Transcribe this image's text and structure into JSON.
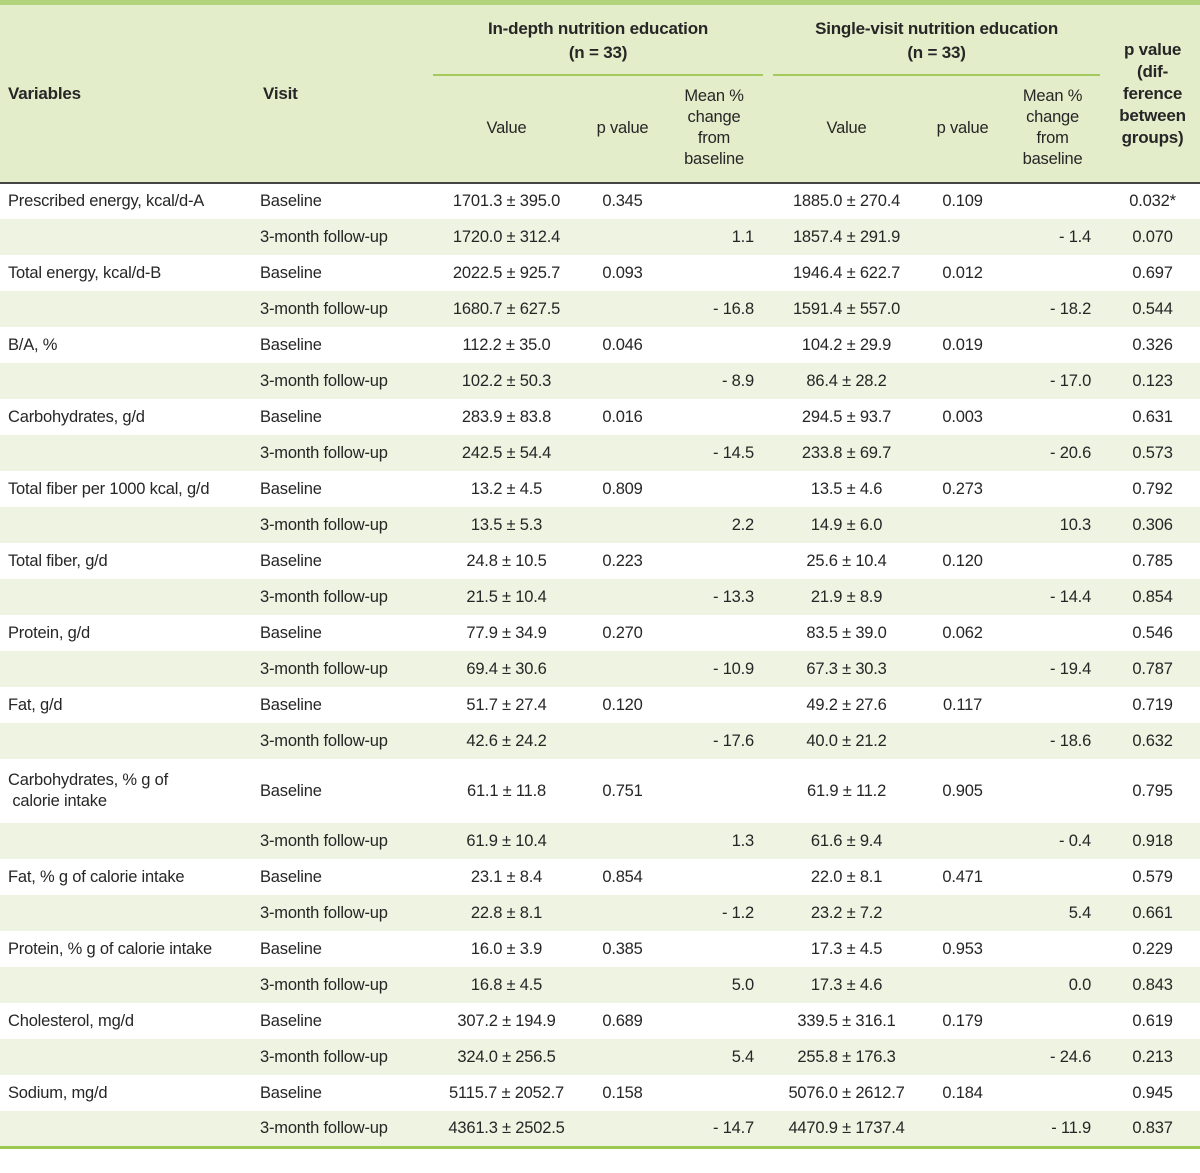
{
  "colors": {
    "header_bg": "#e3edc9",
    "row_alt_bg": "#eef3e2",
    "top_border": "#b2d37c",
    "bottom_border": "#9ac850",
    "group_rule": "#a4c95c",
    "header_rule": "#454545",
    "text": "#262626"
  },
  "table": {
    "headers": {
      "variables": "Variables",
      "visit": "Visit",
      "group1": "In-depth nutrition education\n(n = 33)",
      "group2": "Single-visit nutrition education\n(n = 33)",
      "value": "Value",
      "p_value": "p value",
      "mean_change": "Mean %\nchange\nfrom\nbaseline",
      "p_diff": "p value\n(dif-\nference\nbetween\ngroups)"
    },
    "rows": [
      {
        "variable": "Prescribed energy, kcal/d-A",
        "visit": "Baseline",
        "g1_value": "1701.3 ± 395.0",
        "g1_p": "0.345",
        "g1_mean": "",
        "g2_value": "1885.0 ± 270.4",
        "g2_p": "0.109",
        "g2_mean": "",
        "p_diff": "0.032*"
      },
      {
        "variable": "",
        "visit": "3-month follow-up",
        "g1_value": "1720.0 ± 312.4",
        "g1_p": "",
        "g1_mean": "1.1",
        "g2_value": "1857.4 ± 291.9",
        "g2_p": "",
        "g2_mean": "- 1.4",
        "p_diff": "0.070"
      },
      {
        "variable": "Total energy, kcal/d-B",
        "visit": "Baseline",
        "g1_value": "2022.5 ± 925.7",
        "g1_p": "0.093",
        "g1_mean": "",
        "g2_value": "1946.4 ± 622.7",
        "g2_p": "0.012",
        "g2_mean": "",
        "p_diff": "0.697"
      },
      {
        "variable": "",
        "visit": "3-month follow-up",
        "g1_value": "1680.7 ± 627.5",
        "g1_p": "",
        "g1_mean": "- 16.8",
        "g2_value": "1591.4 ± 557.0",
        "g2_p": "",
        "g2_mean": "- 18.2",
        "p_diff": "0.544"
      },
      {
        "variable": "B/A, %",
        "visit": "Baseline",
        "g1_value": "112.2 ± 35.0",
        "g1_p": "0.046",
        "g1_mean": "",
        "g2_value": "104.2 ± 29.9",
        "g2_p": "0.019",
        "g2_mean": "",
        "p_diff": "0.326"
      },
      {
        "variable": "",
        "visit": "3-month follow-up",
        "g1_value": "102.2 ± 50.3",
        "g1_p": "",
        "g1_mean": "- 8.9",
        "g2_value": "86.4 ± 28.2",
        "g2_p": "",
        "g2_mean": "- 17.0",
        "p_diff": "0.123"
      },
      {
        "variable": "Carbohydrates, g/d",
        "visit": "Baseline",
        "g1_value": "283.9 ± 83.8",
        "g1_p": "0.016",
        "g1_mean": "",
        "g2_value": "294.5 ± 93.7",
        "g2_p": "0.003",
        "g2_mean": "",
        "p_diff": "0.631"
      },
      {
        "variable": "",
        "visit": "3-month follow-up",
        "g1_value": "242.5 ± 54.4",
        "g1_p": "",
        "g1_mean": "- 14.5",
        "g2_value": "233.8 ± 69.7",
        "g2_p": "",
        "g2_mean": "- 20.6",
        "p_diff": "0.573"
      },
      {
        "variable": "Total fiber per 1000 kcal, g/d",
        "visit": "Baseline",
        "g1_value": "13.2 ± 4.5",
        "g1_p": "0.809",
        "g1_mean": "",
        "g2_value": "13.5 ± 4.6",
        "g2_p": "0.273",
        "g2_mean": "",
        "p_diff": "0.792"
      },
      {
        "variable": "",
        "visit": "3-month follow-up",
        "g1_value": "13.5 ± 5.3",
        "g1_p": "",
        "g1_mean": "2.2",
        "g2_value": "14.9 ± 6.0",
        "g2_p": "",
        "g2_mean": "10.3",
        "p_diff": "0.306"
      },
      {
        "variable": "Total fiber, g/d",
        "visit": "Baseline",
        "g1_value": "24.8 ± 10.5",
        "g1_p": "0.223",
        "g1_mean": "",
        "g2_value": "25.6 ± 10.4",
        "g2_p": "0.120",
        "g2_mean": "",
        "p_diff": "0.785"
      },
      {
        "variable": "",
        "visit": "3-month follow-up",
        "g1_value": "21.5 ± 10.4",
        "g1_p": "",
        "g1_mean": "- 13.3",
        "g2_value": "21.9 ± 8.9",
        "g2_p": "",
        "g2_mean": "- 14.4",
        "p_diff": "0.854"
      },
      {
        "variable": "Protein, g/d",
        "visit": "Baseline",
        "g1_value": "77.9 ± 34.9",
        "g1_p": "0.270",
        "g1_mean": "",
        "g2_value": "83.5 ± 39.0",
        "g2_p": "0.062",
        "g2_mean": "",
        "p_diff": "0.546"
      },
      {
        "variable": "",
        "visit": "3-month follow-up",
        "g1_value": "69.4 ± 30.6",
        "g1_p": "",
        "g1_mean": "- 10.9",
        "g2_value": "67.3 ± 30.3",
        "g2_p": "",
        "g2_mean": "- 19.4",
        "p_diff": "0.787"
      },
      {
        "variable": "Fat, g/d",
        "visit": "Baseline",
        "g1_value": "51.7 ± 27.4",
        "g1_p": "0.120",
        "g1_mean": "",
        "g2_value": "49.2 ± 27.6",
        "g2_p": "0.117",
        "g2_mean": "",
        "p_diff": "0.719"
      },
      {
        "variable": "",
        "visit": "3-month follow-up",
        "g1_value": "42.6 ± 24.2",
        "g1_p": "",
        "g1_mean": "- 17.6",
        "g2_value": "40.0 ± 21.2",
        "g2_p": "",
        "g2_mean": "- 18.6",
        "p_diff": "0.632"
      },
      {
        "variable": "Carbohydrates, % g of\n calorie intake",
        "visit": "Baseline",
        "g1_value": "61.1 ± 11.8",
        "g1_p": "0.751",
        "g1_mean": "",
        "g2_value": "61.9 ± 11.2",
        "g2_p": "0.905",
        "g2_mean": "",
        "p_diff": "0.795"
      },
      {
        "variable": "",
        "visit": "3-month follow-up",
        "g1_value": "61.9 ± 10.4",
        "g1_p": "",
        "g1_mean": "1.3",
        "g2_value": "61.6 ± 9.4",
        "g2_p": "",
        "g2_mean": "- 0.4",
        "p_diff": "0.918"
      },
      {
        "variable": "Fat, % g of calorie intake",
        "visit": "Baseline",
        "g1_value": "23.1 ± 8.4",
        "g1_p": "0.854",
        "g1_mean": "",
        "g2_value": "22.0 ± 8.1",
        "g2_p": "0.471",
        "g2_mean": "",
        "p_diff": "0.579"
      },
      {
        "variable": "",
        "visit": "3-month follow-up",
        "g1_value": "22.8 ± 8.1",
        "g1_p": "",
        "g1_mean": "- 1.2",
        "g2_value": "23.2 ± 7.2",
        "g2_p": "",
        "g2_mean": "5.4",
        "p_diff": "0.661"
      },
      {
        "variable": "Protein, % g of calorie intake",
        "visit": "Baseline",
        "g1_value": "16.0 ± 3.9",
        "g1_p": "0.385",
        "g1_mean": "",
        "g2_value": "17.3 ± 4.5",
        "g2_p": "0.953",
        "g2_mean": "",
        "p_diff": "0.229"
      },
      {
        "variable": "",
        "visit": "3-month follow-up",
        "g1_value": "16.8 ± 4.5",
        "g1_p": "",
        "g1_mean": "5.0",
        "g2_value": "17.3 ± 4.6",
        "g2_p": "",
        "g2_mean": "0.0",
        "p_diff": "0.843"
      },
      {
        "variable": "Cholesterol, mg/d",
        "visit": "Baseline",
        "g1_value": "307.2 ± 194.9",
        "g1_p": "0.689",
        "g1_mean": "",
        "g2_value": "339.5 ± 316.1",
        "g2_p": "0.179",
        "g2_mean": "",
        "p_diff": "0.619"
      },
      {
        "variable": "",
        "visit": "3-month follow-up",
        "g1_value": "324.0 ± 256.5",
        "g1_p": "",
        "g1_mean": "5.4",
        "g2_value": "255.8 ± 176.3",
        "g2_p": "",
        "g2_mean": "- 24.6",
        "p_diff": "0.213"
      },
      {
        "variable": "Sodium, mg/d",
        "visit": "Baseline",
        "g1_value": "5115.7 ± 2052.7",
        "g1_p": "0.158",
        "g1_mean": "",
        "g2_value": "5076.0 ± 2612.7",
        "g2_p": "0.184",
        "g2_mean": "",
        "p_diff": "0.945"
      },
      {
        "variable": "",
        "visit": "3-month follow-up",
        "g1_value": "4361.3 ± 2502.5",
        "g1_p": "",
        "g1_mean": "- 14.7",
        "g2_value": "4470.9 ± 1737.4",
        "g2_p": "",
        "g2_mean": "- 11.9",
        "p_diff": "0.837"
      }
    ]
  }
}
